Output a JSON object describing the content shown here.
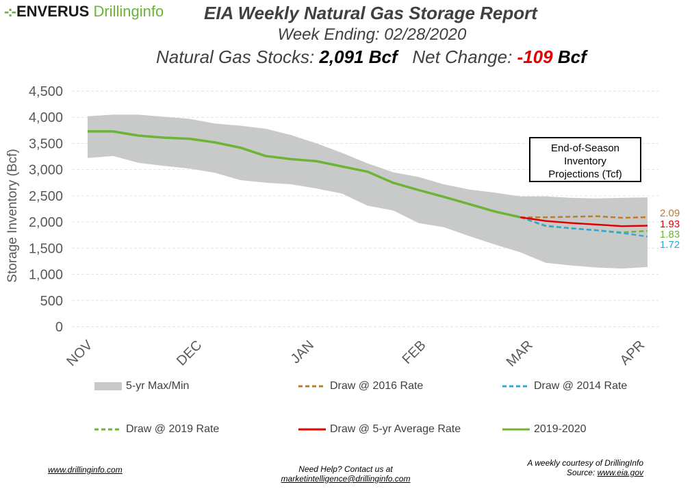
{
  "header": {
    "logo_brand": "ENVERUS",
    "logo_product": "Drillinginfo",
    "title": "EIA Weekly Natural Gas Storage Report",
    "week_line": "Week Ending: 02/28/2020",
    "stocks_label": "Natural Gas Stocks:",
    "stocks_value": "2,091",
    "stocks_unit": "Bcf",
    "change_label": "Net Change:",
    "change_value": "-109",
    "change_unit": "Bcf"
  },
  "callout": {
    "line1": "End-of-Season",
    "line2": "Inventory",
    "line3": "Projections (Tcf)"
  },
  "end_labels": [
    {
      "text": "2.09",
      "color": "#c07a2c"
    },
    {
      "text": "1.93",
      "color": "#e00000"
    },
    {
      "text": "1.83",
      "color": "#6bb436"
    },
    {
      "text": "1.72",
      "color": "#2ea8d8"
    }
  ],
  "legend": [
    {
      "label": "5-yr Max/Min",
      "style": "band",
      "color": "#c8caca"
    },
    {
      "label": "Draw @ 2016 Rate",
      "style": "dash",
      "color": "#c07a2c"
    },
    {
      "label": "Draw @ 2014 Rate",
      "style": "dash",
      "color": "#2ea8d8"
    },
    {
      "label": "Draw @ 2019 Rate",
      "style": "dash",
      "color": "#6bb436"
    },
    {
      "label": "Draw @ 5-yr Average Rate",
      "style": "solid",
      "color": "#e00000"
    },
    {
      "label": "2019-2020",
      "style": "solid",
      "color": "#6bb436"
    }
  ],
  "footer": {
    "left": "www.drillinginfo.com",
    "center_line1": "Need Help? Contact us at",
    "center_line2": "marketintelligence@drillinginfo.com",
    "right_line1": "A weekly courtesy of DrillingInfo",
    "right_prefix": "Source: ",
    "right_link": "www.eia.gov"
  },
  "chart_data": {
    "type": "line",
    "ylabel": "Storage Inventory (Bcf)",
    "xlabel": "",
    "ylim": [
      0,
      4500
    ],
    "yticks": [
      0,
      500,
      1000,
      1500,
      2000,
      2500,
      3000,
      3500,
      4000,
      4500
    ],
    "ytick_labels": [
      "0",
      "500",
      "1,000",
      "1,500",
      "2,000",
      "2,500",
      "3,000",
      "3,500",
      "4,000",
      "4,500"
    ],
    "xlim": [
      0,
      22
    ],
    "xticks": [
      {
        "label": "NOV",
        "week": 0
      },
      {
        "label": "DEC",
        "week": 4.3
      },
      {
        "label": "JAN",
        "week": 8.7
      },
      {
        "label": "FEB",
        "week": 13.1
      },
      {
        "label": "MAR",
        "week": 17.3
      },
      {
        "label": "APR",
        "week": 21.7
      }
    ],
    "grid": true,
    "legend_position": "bottom",
    "band": {
      "name": "5-yr Max/Min",
      "x": [
        0,
        1,
        2,
        3,
        4,
        5,
        6,
        7,
        8,
        9,
        10,
        11,
        12,
        13,
        14,
        15,
        16,
        17,
        18,
        19,
        20,
        21,
        22
      ],
      "max": [
        4020,
        4050,
        4050,
        4010,
        3970,
        3880,
        3840,
        3780,
        3660,
        3500,
        3320,
        3120,
        2950,
        2860,
        2720,
        2620,
        2560,
        2490,
        2490,
        2460,
        2450,
        2460,
        2470
      ],
      "min": [
        3220,
        3260,
        3130,
        3070,
        3020,
        2940,
        2800,
        2750,
        2720,
        2640,
        2540,
        2310,
        2220,
        1980,
        1900,
        1730,
        1570,
        1420,
        1220,
        1170,
        1130,
        1110,
        1140
      ]
    },
    "series": [
      {
        "name": "2019-2020",
        "color": "#6bb436",
        "style": "solid",
        "x": [
          0,
          1,
          2,
          3,
          4,
          5,
          6,
          7,
          8,
          9,
          10,
          11,
          12,
          13,
          14,
          15,
          16,
          17
        ],
        "y": [
          3730,
          3730,
          3650,
          3610,
          3590,
          3520,
          3420,
          3260,
          3200,
          3160,
          3060,
          2960,
          2750,
          2610,
          2480,
          2340,
          2200,
          2091
        ]
      },
      {
        "name": "Draw @ 2016 Rate",
        "color": "#c07a2c",
        "style": "dash",
        "x": [
          17,
          18,
          19,
          20,
          21,
          22
        ],
        "y": [
          2091,
          2090,
          2100,
          2110,
          2080,
          2090
        ]
      },
      {
        "name": "Draw @ 5-yr Average Rate",
        "color": "#e00000",
        "style": "solid",
        "x": [
          17,
          18,
          19,
          20,
          21,
          22
        ],
        "y": [
          2091,
          2020,
          1980,
          1950,
          1920,
          1930
        ]
      },
      {
        "name": "Draw @ 2019 Rate",
        "color": "#6bb436",
        "style": "dash",
        "x": [
          17,
          18,
          19,
          20,
          21,
          22
        ],
        "y": [
          2091,
          1920,
          1880,
          1840,
          1800,
          1830
        ]
      },
      {
        "name": "Draw @ 2014 Rate",
        "color": "#2ea8d8",
        "style": "dash",
        "x": [
          17,
          18,
          19,
          20,
          21,
          22
        ],
        "y": [
          2091,
          1930,
          1880,
          1840,
          1790,
          1720
        ]
      }
    ]
  }
}
